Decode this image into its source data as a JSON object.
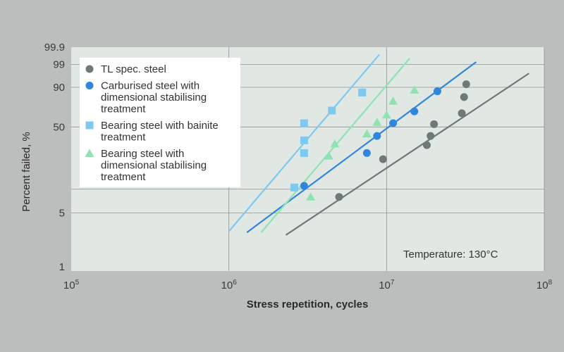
{
  "chart_data": {
    "type": "scatter",
    "xlabel": "Stress repetition, cycles",
    "ylabel": "Percent failed, %",
    "x_scale": "log",
    "y_scale": "weibull",
    "xlim": [
      100000,
      100000000
    ],
    "x_ticks": [
      {
        "base": "10",
        "exp": "5"
      },
      {
        "base": "10",
        "exp": "6"
      },
      {
        "base": "10",
        "exp": "7"
      },
      {
        "base": "10",
        "exp": "8"
      }
    ],
    "y_ticks": [
      "1",
      "5",
      "50",
      "90",
      "99",
      "99.9"
    ],
    "grid": true,
    "legend_position": "top-left",
    "annotation": "Temperature: 130°C",
    "series": [
      {
        "name": "TL spec. steel",
        "marker": "circle",
        "color": "#6e7a78",
        "points": [
          [
            5000000,
            8
          ],
          [
            9500000,
            23
          ],
          [
            18000000,
            33
          ],
          [
            19000000,
            41
          ],
          [
            20000000,
            53
          ],
          [
            30000000,
            65
          ],
          [
            31000000,
            82
          ],
          [
            32000000,
            92
          ]
        ],
        "fit_line": [
          [
            2300000,
            2.6
          ],
          [
            80000000,
            97
          ]
        ]
      },
      {
        "name": "Carburised steel with dimensional stabilising treatment",
        "marker": "circle",
        "color": "#2f86dc",
        "points": [
          [
            3000000,
            11
          ],
          [
            7500000,
            27
          ],
          [
            8700000,
            41
          ],
          [
            11000000,
            54
          ],
          [
            15000000,
            67
          ],
          [
            21000000,
            87
          ]
        ],
        "fit_line": [
          [
            1300000,
            2.8
          ],
          [
            37000000,
            99.3
          ]
        ]
      },
      {
        "name": "Bearing steel with bainite treatment",
        "marker": "square",
        "color": "#7fc8ef",
        "points": [
          [
            2600000,
            10.5
          ],
          [
            3000000,
            27
          ],
          [
            3000000,
            37
          ],
          [
            3000000,
            54
          ],
          [
            4500000,
            68
          ],
          [
            7000000,
            86
          ]
        ],
        "fit_line": [
          [
            1000000,
            2.9
          ],
          [
            9000000,
            99.8
          ]
        ]
      },
      {
        "name": "Bearing steel with dimensional stabilising treatment",
        "marker": "triangle",
        "color": "#8fe3b0",
        "points": [
          [
            3300000,
            8
          ],
          [
            4300000,
            25
          ],
          [
            4700000,
            34
          ],
          [
            7500000,
            43
          ],
          [
            8700000,
            55
          ],
          [
            10000000,
            63
          ],
          [
            11000000,
            78
          ],
          [
            15000000,
            88
          ]
        ],
        "fit_line": [
          [
            1600000,
            2.8
          ],
          [
            14000000,
            99.6
          ]
        ]
      }
    ]
  }
}
